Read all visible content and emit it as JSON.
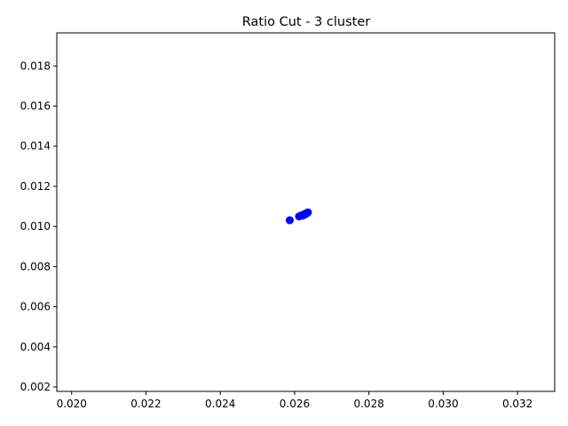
{
  "chart_data": {
    "type": "scatter",
    "title": "Ratio Cut - 3 cluster",
    "xlabel": "",
    "ylabel": "",
    "xlim": [
      0.0196,
      0.033
    ],
    "ylim": [
      0.00178,
      0.01965
    ],
    "x_ticks": [
      "0.020",
      "0.022",
      "0.024",
      "0.026",
      "0.028",
      "0.030",
      "0.032"
    ],
    "x_tick_values": [
      0.02,
      0.022,
      0.024,
      0.026,
      0.028,
      0.03,
      0.032
    ],
    "y_ticks": [
      "0.002",
      "0.004",
      "0.006",
      "0.008",
      "0.010",
      "0.012",
      "0.014",
      "0.016",
      "0.018"
    ],
    "y_tick_values": [
      0.002,
      0.004,
      0.006,
      0.008,
      0.01,
      0.012,
      0.014,
      0.016,
      0.018
    ],
    "grid": false,
    "marker_color": "#0000ff",
    "series": [
      {
        "x": [
          0.02587,
          0.02612,
          0.02616,
          0.0262,
          0.02623,
          0.02626,
          0.02628,
          0.0263,
          0.02632,
          0.02634,
          0.02636,
          0.02622,
          0.02627,
          0.02631
        ],
        "y": [
          0.01031,
          0.0105,
          0.01053,
          0.01056,
          0.01058,
          0.0106,
          0.01062,
          0.01064,
          0.01066,
          0.01068,
          0.0107,
          0.01054,
          0.01059,
          0.01063
        ]
      }
    ]
  }
}
